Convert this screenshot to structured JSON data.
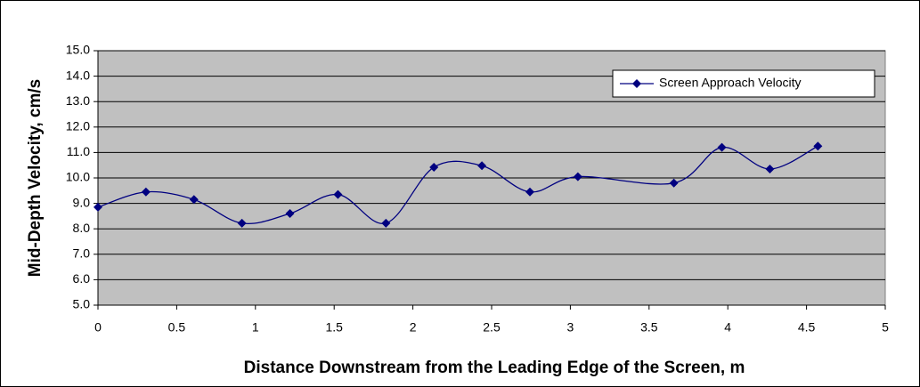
{
  "chart_data": {
    "type": "line",
    "xlabel": "Distance Downstream from the Leading Edge of the Screen, m",
    "ylabel": "Mid-Depth Velocity, cm/s",
    "x": [
      0,
      0.3048,
      0.6096,
      0.9144,
      1.2192,
      1.524,
      1.8288,
      2.1336,
      2.4384,
      2.7432,
      3.048,
      3.6576,
      3.9624,
      4.2672,
      4.572
    ],
    "series": [
      {
        "name": "Screen Approach Velocity",
        "color": "#000080",
        "values": [
          8.85,
          9.45,
          9.15,
          8.22,
          8.6,
          9.35,
          8.22,
          10.42,
          10.48,
          9.45,
          10.05,
          9.8,
          11.2,
          10.35,
          11.25
        ]
      }
    ],
    "xlim": [
      0,
      5
    ],
    "xticks": [
      0,
      0.5,
      1,
      1.5,
      2,
      2.5,
      3,
      3.5,
      4,
      4.5,
      5
    ],
    "ylim": [
      5,
      15
    ],
    "yticks": [
      {
        "value": 5,
        "label": "5.0"
      },
      {
        "value": 6,
        "label": "6.0"
      },
      {
        "value": 7,
        "label": "7.0"
      },
      {
        "value": 8,
        "label": "8.0"
      },
      {
        "value": 9,
        "label": "9.0"
      },
      {
        "value": 10,
        "label": "10.0"
      },
      {
        "value": 11,
        "label": "11.0"
      },
      {
        "value": 12,
        "label": "12.0"
      },
      {
        "value": 13,
        "label": "13.0"
      },
      {
        "value": 14,
        "label": "14.0"
      },
      {
        "value": 15,
        "label": "15.0"
      }
    ],
    "grid": true,
    "smooth": true,
    "plot_background": "#c0c0c0",
    "legend": "upper right"
  }
}
